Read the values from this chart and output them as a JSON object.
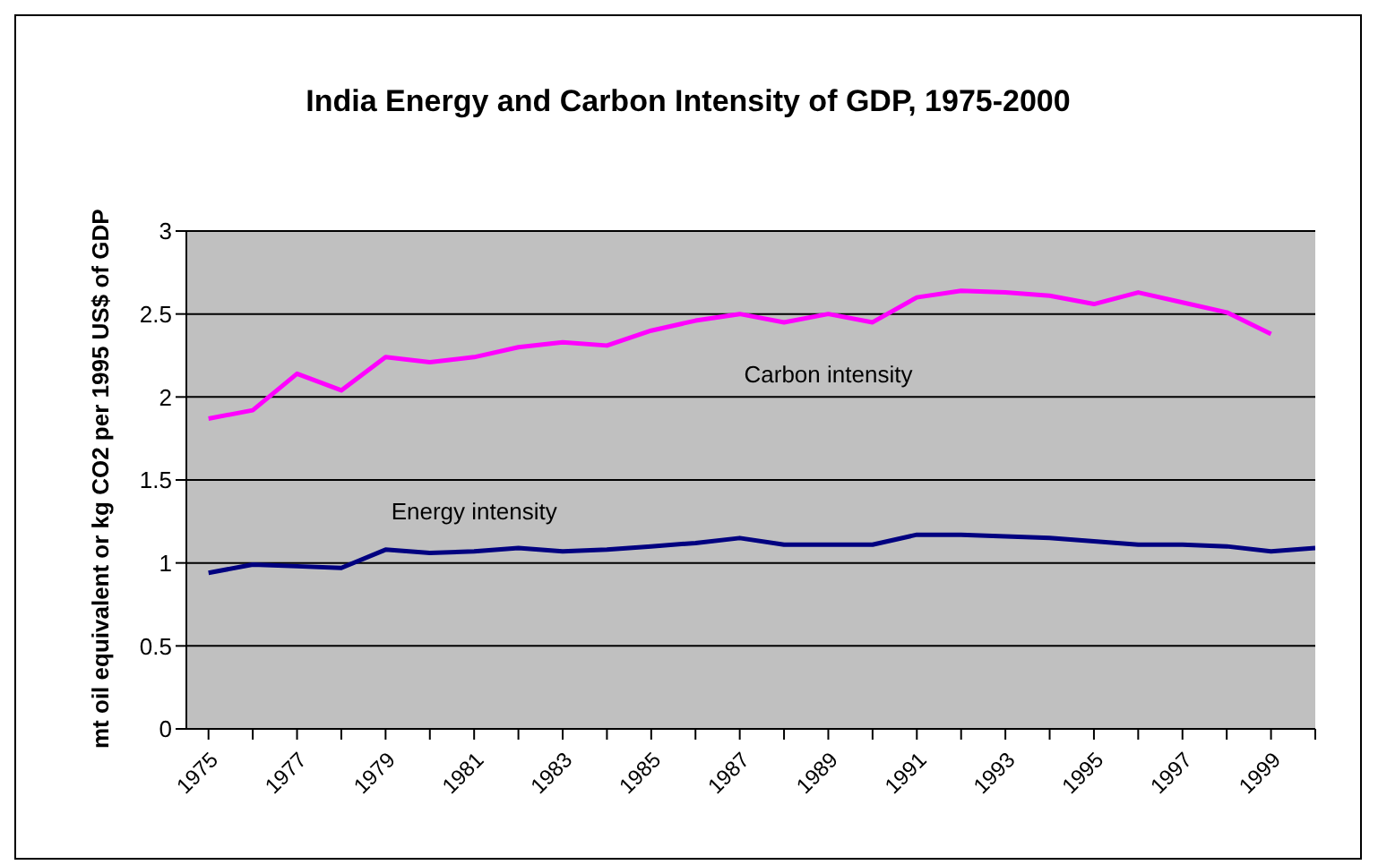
{
  "chart_data": {
    "type": "line",
    "title": "India Energy and Carbon Intensity of GDP, 1975-2000",
    "ylabel": "mt oil equivalent or kg CO2 per 1995 US$ of GDP",
    "categories": [
      "1975",
      null,
      "1977",
      null,
      "1979",
      null,
      "1981",
      null,
      "1983",
      null,
      "1985",
      null,
      "1987",
      null,
      "1989",
      null,
      "1991",
      null,
      "1993",
      null,
      "1995",
      null,
      "1997",
      null,
      "1999",
      null
    ],
    "series": [
      {
        "name": "Carbon intensity",
        "color": "#ff00ff",
        "values": [
          1.87,
          1.92,
          2.14,
          2.04,
          2.24,
          2.21,
          2.24,
          2.3,
          2.33,
          2.31,
          2.4,
          2.46,
          2.5,
          2.45,
          2.5,
          2.45,
          2.6,
          2.64,
          2.63,
          2.61,
          2.56,
          2.63,
          2.57,
          2.51,
          2.38,
          null
        ]
      },
      {
        "name": "Energy intensity",
        "color": "#000080",
        "values": [
          0.94,
          0.99,
          0.98,
          0.97,
          1.08,
          1.06,
          1.07,
          1.09,
          1.07,
          1.08,
          1.1,
          1.12,
          1.15,
          1.11,
          1.11,
          1.11,
          1.17,
          1.17,
          1.16,
          1.15,
          1.13,
          1.11,
          1.11,
          1.1,
          1.07,
          1.09
        ]
      }
    ],
    "ylim": [
      0,
      3
    ],
    "yticks": [
      0,
      0.5,
      1,
      1.5,
      2,
      2.5,
      3
    ],
    "grid": "y",
    "legend": false,
    "marker": "none",
    "line_style": "solid"
  }
}
